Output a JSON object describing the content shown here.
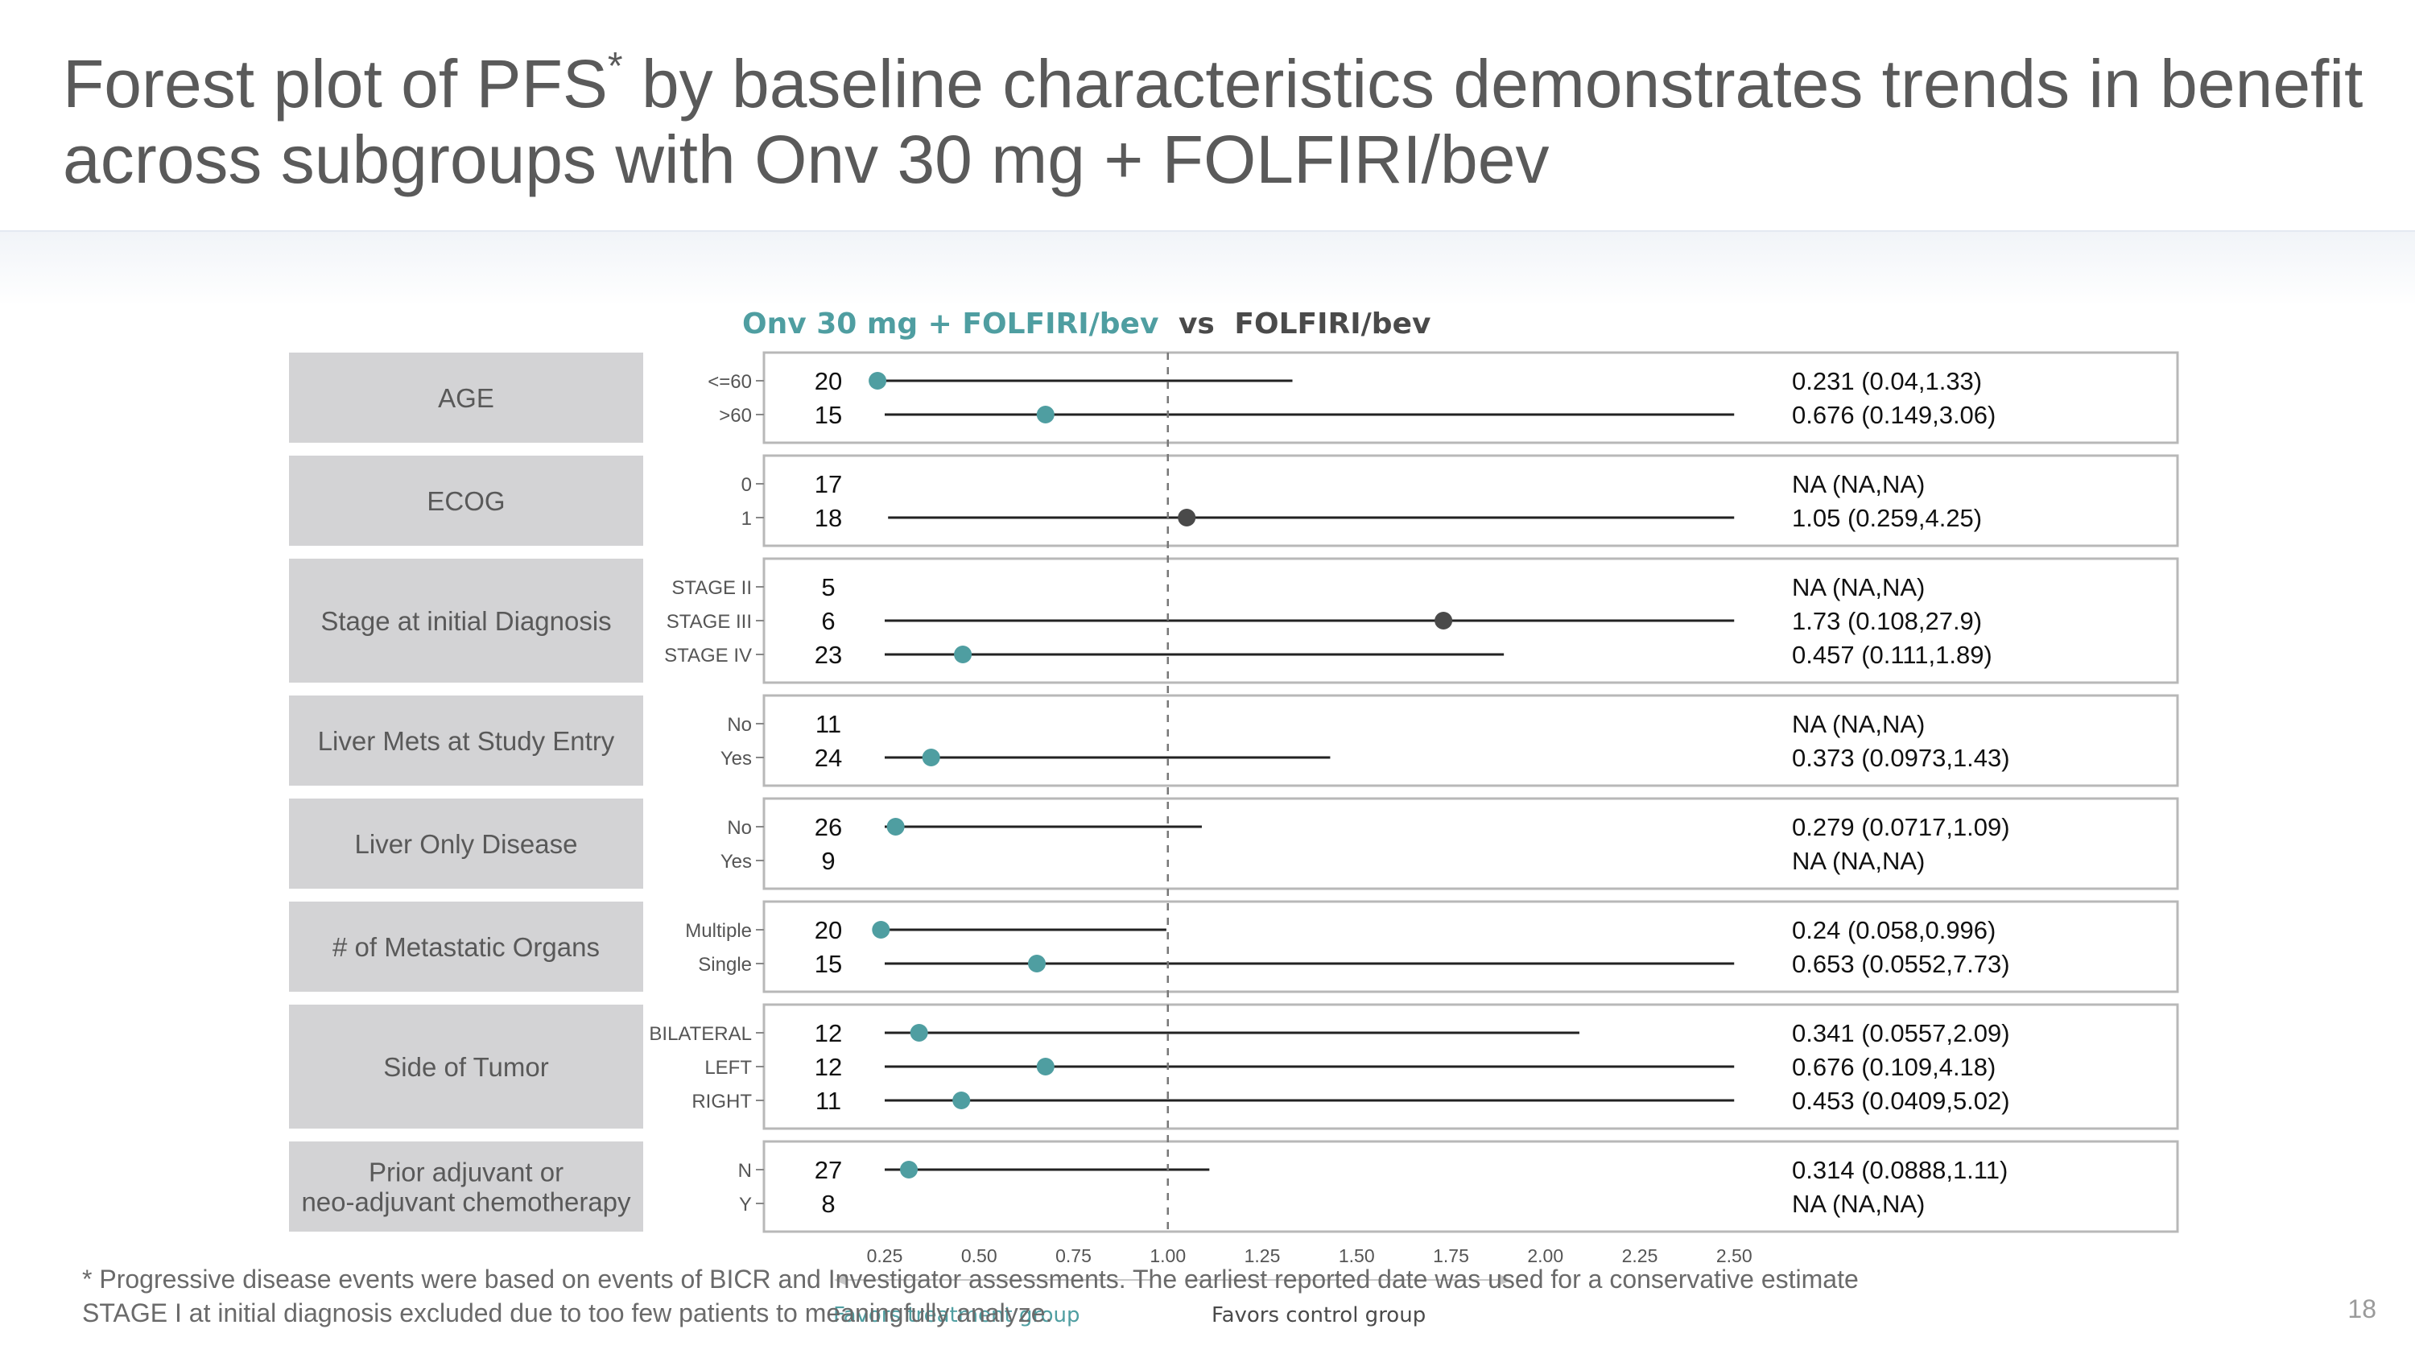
{
  "slide": {
    "title_part1": "Forest plot of PFS",
    "title_asterisk": "*",
    "title_part2": " by baseline characteristics demonstrates trends in benefit across subgroups with Onv 30 mg + FOLFIRI/bev",
    "footnote_line1": "* Progressive disease events were based on events of BICR and Investigator assessments. The earliest reported date was used for a conservative estimate",
    "footnote_line2": "STAGE I at initial diagnosis excluded due to too few patients to meaningfully analyze.",
    "page_number": "18"
  },
  "colors": {
    "treatment": "#4f9ea1",
    "control": "#4a4a4a",
    "category_box": "#d3d3d5",
    "title": "#5a5a5a"
  },
  "chart_data": {
    "type": "forest",
    "title_treatment": "Onv 30 mg + FOLFIRI/bev",
    "title_vs": "vs",
    "title_control": "FOLFIRI/bev",
    "x_ticks": [
      "0.25",
      "0.50",
      "0.75",
      "1.00",
      "1.25",
      "1.50",
      "1.75",
      "2.00",
      "2.25",
      "2.50"
    ],
    "xlim": [
      0.25,
      2.5
    ],
    "reference_line": 1.0,
    "favors_treatment_label": "Favors treatment group",
    "favors_control_label": "Favors control group",
    "groups": [
      {
        "category": "AGE",
        "rows": [
          {
            "label": "<=60",
            "n": "20",
            "hr": 0.231,
            "lower": 0.04,
            "upper": 1.33,
            "ci_text": "0.231 (0.04,1.33)"
          },
          {
            "label": ">60",
            "n": "15",
            "hr": 0.676,
            "lower": 0.149,
            "upper": 3.06,
            "ci_text": "0.676 (0.149,3.06)"
          }
        ]
      },
      {
        "category": "ECOG",
        "rows": [
          {
            "label": "0",
            "n": "17",
            "hr": null,
            "lower": null,
            "upper": null,
            "ci_text": "NA (NA,NA)"
          },
          {
            "label": "1",
            "n": "18",
            "hr": 1.05,
            "lower": 0.259,
            "upper": 4.25,
            "ci_text": "1.05 (0.259,4.25)"
          }
        ]
      },
      {
        "category": "Stage at initial Diagnosis",
        "rows": [
          {
            "label": "STAGE II",
            "n": "5",
            "hr": null,
            "lower": null,
            "upper": null,
            "ci_text": "NA (NA,NA)"
          },
          {
            "label": "STAGE III",
            "n": "6",
            "hr": 1.73,
            "lower": 0.108,
            "upper": 27.9,
            "ci_text": "1.73 (0.108,27.9)"
          },
          {
            "label": "STAGE IV",
            "n": "23",
            "hr": 0.457,
            "lower": 0.111,
            "upper": 1.89,
            "ci_text": "0.457 (0.111,1.89)"
          }
        ]
      },
      {
        "category": "Liver Mets at Study Entry",
        "rows": [
          {
            "label": "No",
            "n": "11",
            "hr": null,
            "lower": null,
            "upper": null,
            "ci_text": "NA (NA,NA)"
          },
          {
            "label": "Yes",
            "n": "24",
            "hr": 0.373,
            "lower": 0.0973,
            "upper": 1.43,
            "ci_text": "0.373 (0.0973,1.43)"
          }
        ]
      },
      {
        "category": "Liver Only Disease",
        "rows": [
          {
            "label": "No",
            "n": "26",
            "hr": 0.279,
            "lower": 0.0717,
            "upper": 1.09,
            "ci_text": "0.279 (0.0717,1.09)"
          },
          {
            "label": "Yes",
            "n": "9",
            "hr": null,
            "lower": null,
            "upper": null,
            "ci_text": "NA (NA,NA)"
          }
        ]
      },
      {
        "category": "# of Metastatic Organs",
        "rows": [
          {
            "label": "Multiple",
            "n": "20",
            "hr": 0.24,
            "lower": 0.058,
            "upper": 0.996,
            "ci_text": "0.24 (0.058,0.996)"
          },
          {
            "label": "Single",
            "n": "15",
            "hr": 0.653,
            "lower": 0.0552,
            "upper": 7.73,
            "ci_text": "0.653 (0.0552,7.73)"
          }
        ]
      },
      {
        "category": "Side of Tumor",
        "rows": [
          {
            "label": "BILATERAL",
            "n": "12",
            "hr": 0.341,
            "lower": 0.0557,
            "upper": 2.09,
            "ci_text": "0.341 (0.0557,2.09)"
          },
          {
            "label": "LEFT",
            "n": "12",
            "hr": 0.676,
            "lower": 0.109,
            "upper": 4.18,
            "ci_text": "0.676 (0.109,4.18)"
          },
          {
            "label": "RIGHT",
            "n": "11",
            "hr": 0.453,
            "lower": 0.0409,
            "upper": 5.02,
            "ci_text": "0.453 (0.0409,5.02)"
          }
        ]
      },
      {
        "category": "Prior adjuvant or\nneo-adjuvant chemotherapy",
        "rows": [
          {
            "label": "N",
            "n": "27",
            "hr": 0.314,
            "lower": 0.0888,
            "upper": 1.11,
            "ci_text": "0.314 (0.0888,1.11)"
          },
          {
            "label": "Y",
            "n": "8",
            "hr": null,
            "lower": null,
            "upper": null,
            "ci_text": "NA (NA,NA)"
          }
        ]
      }
    ]
  }
}
